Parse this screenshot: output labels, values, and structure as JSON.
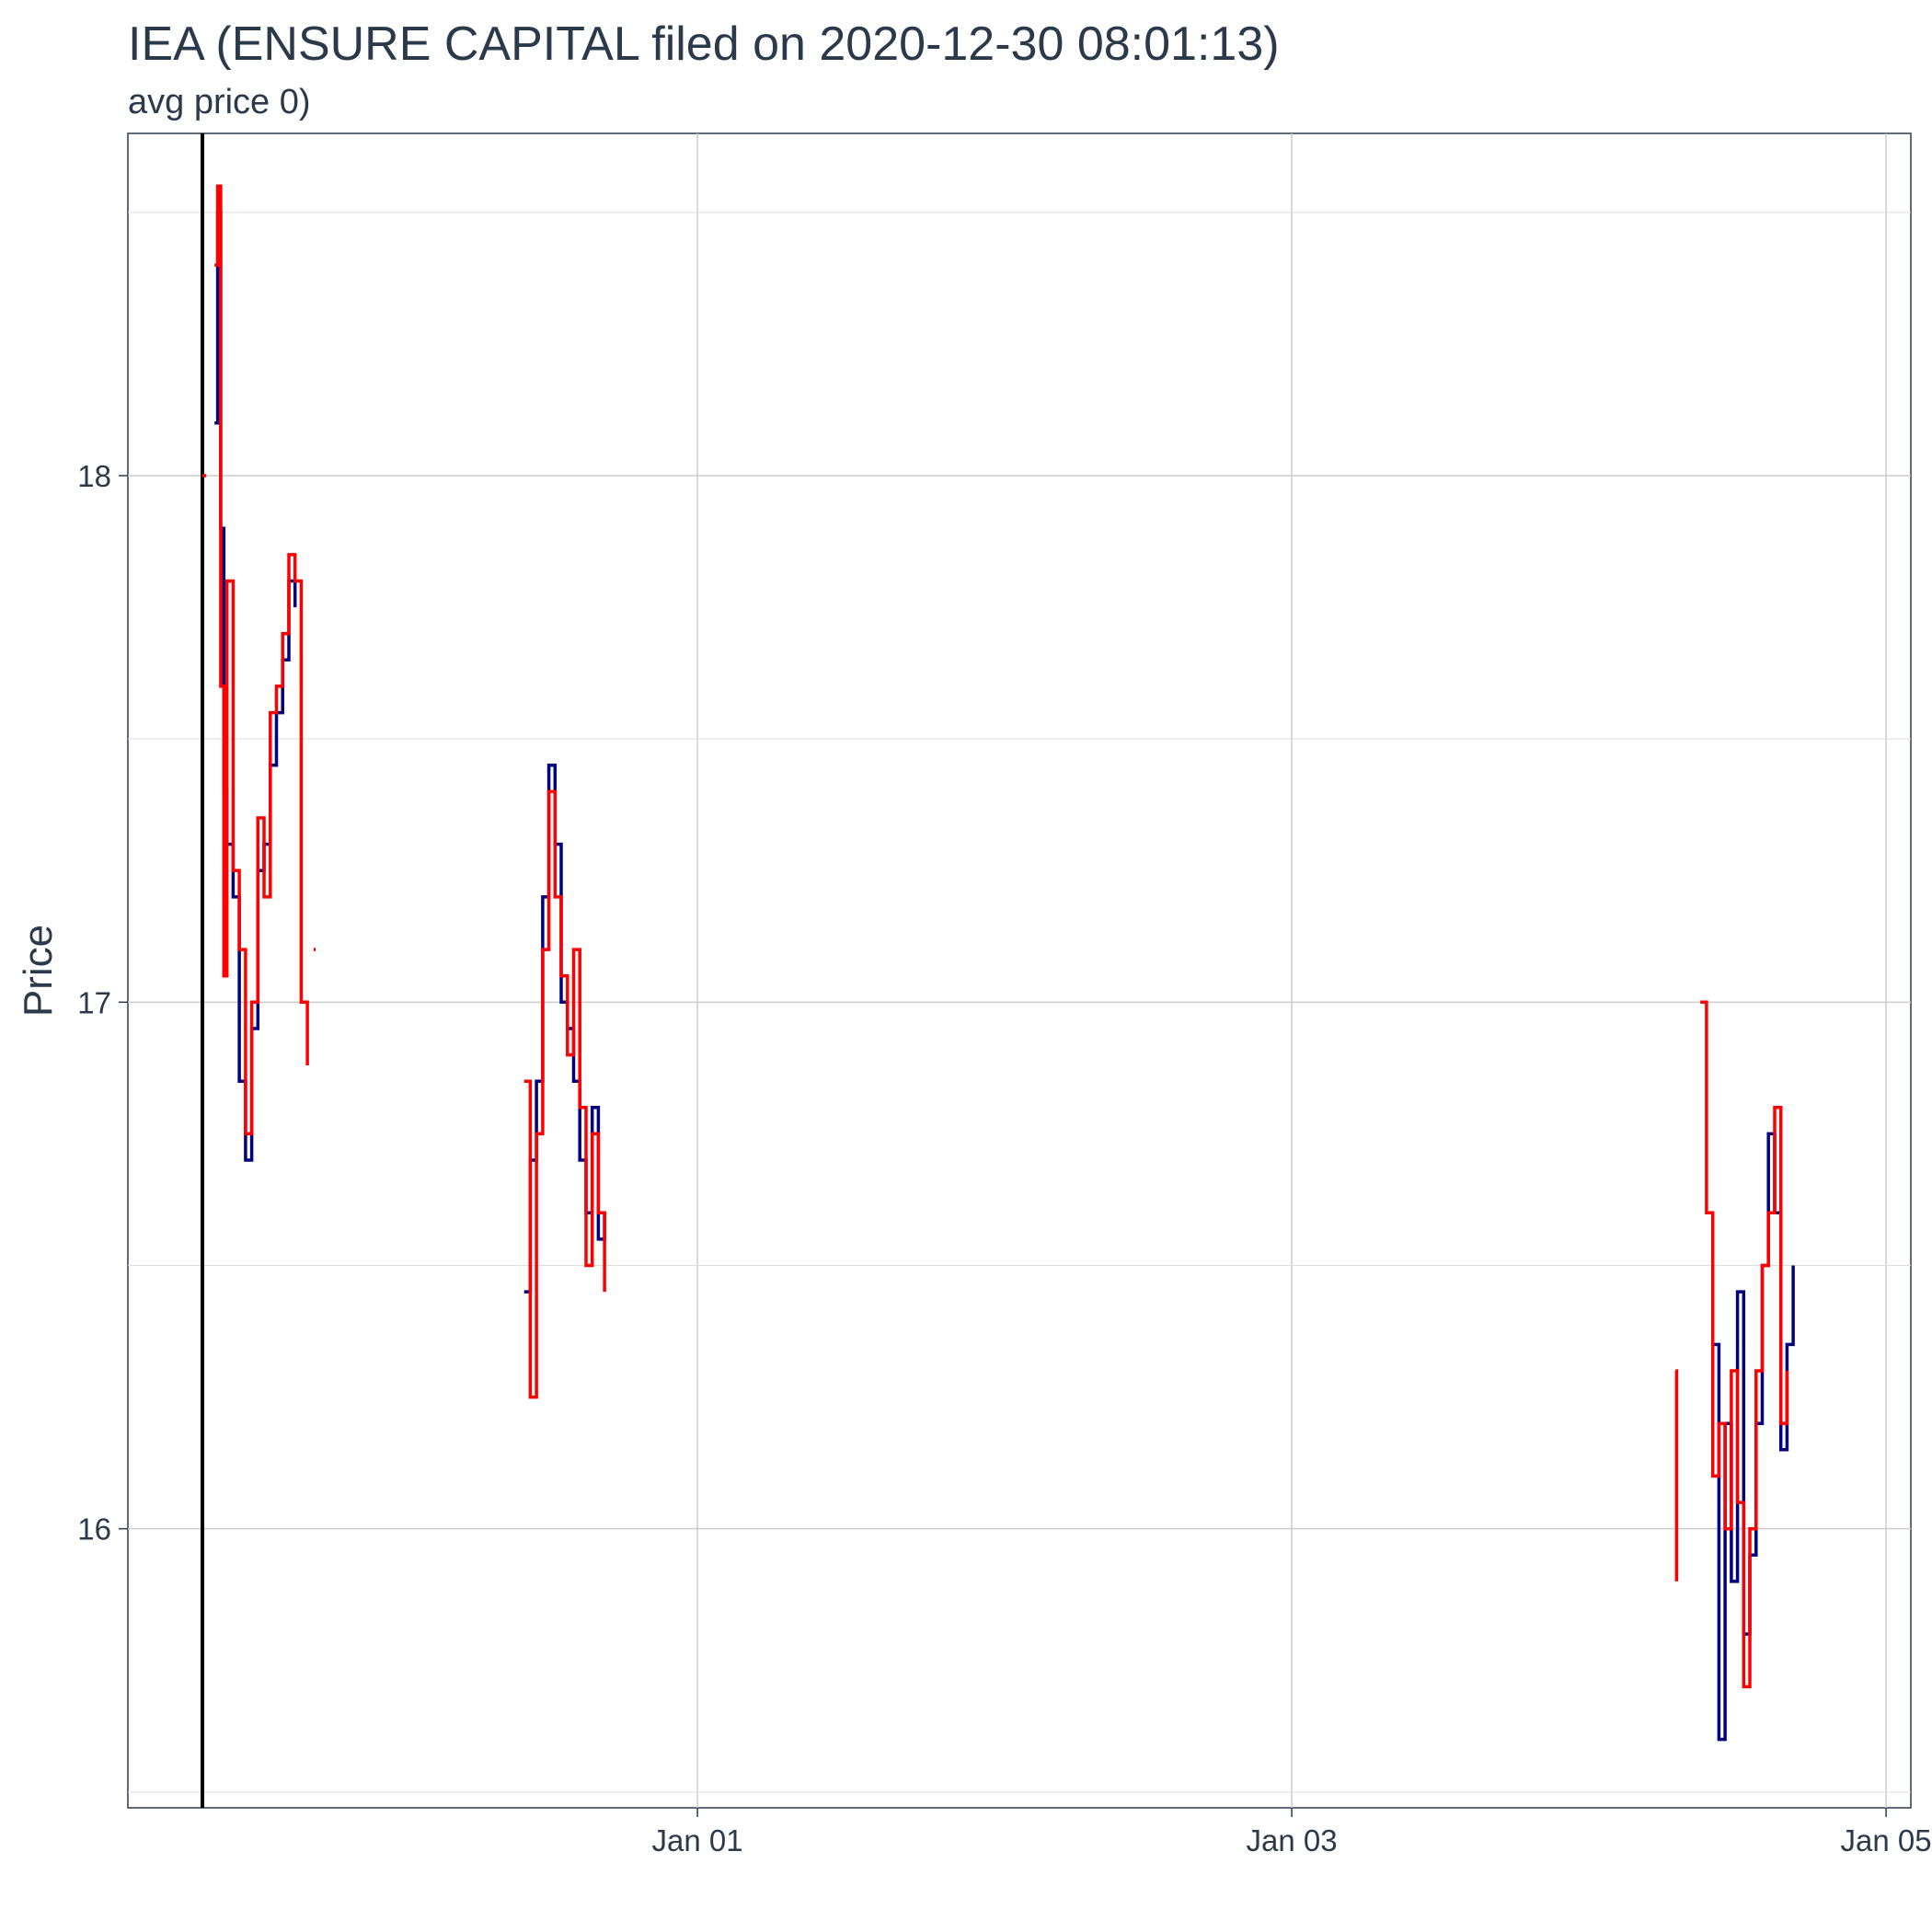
{
  "chart_data": {
    "type": "line",
    "title": "IEA (ENSURE CAPITAL filed on 2020-12-30 08:01:13)",
    "subtitle": "avg price 0)",
    "xlabel": "",
    "ylabel": "Price",
    "x_ticks": [
      {
        "label": "Jan 01",
        "value": "2021-01-01"
      },
      {
        "label": "Jan 03",
        "value": "2021-01-03"
      },
      {
        "label": "Jan 05",
        "value": "2021-01-05"
      }
    ],
    "y_ticks": [
      16,
      17,
      18
    ],
    "xlim": [
      "2020-12-30 02:00",
      "2021-01-05 02:00"
    ],
    "ylim": [
      15.47,
      18.65
    ],
    "grid": true,
    "legend": "none",
    "filing_marker": {
      "x": "2020-12-30 08:01:13",
      "color": "#000000"
    },
    "series": [
      {
        "color": "#000080",
        "segments": [
          {
            "x": [
              "2020-12-30 09:00",
              "2020-12-30 09:15",
              "2020-12-30 09:30",
              "2020-12-30 09:45",
              "2020-12-30 10:00",
              "2020-12-30 10:30",
              "2020-12-30 11:00",
              "2020-12-30 11:30",
              "2020-12-30 12:00",
              "2020-12-30 12:30",
              "2020-12-30 13:00",
              "2020-12-30 13:30",
              "2020-12-30 14:00",
              "2020-12-30 14:30",
              "2020-12-30 15:00",
              "2020-12-30 15:30"
            ],
            "y": [
              18.1,
              18.5,
              17.9,
              17.4,
              17.3,
              17.2,
              16.85,
              16.7,
              16.95,
              17.25,
              17.3,
              17.45,
              17.55,
              17.65,
              17.8,
              17.75
            ]
          },
          {
            "x": [
              "2020-12-31 10:00",
              "2020-12-31 10:30",
              "2020-12-31 11:00",
              "2020-12-31 11:30",
              "2020-12-31 12:00",
              "2020-12-31 12:30",
              "2020-12-31 13:00",
              "2020-12-31 13:30",
              "2020-12-31 14:00",
              "2020-12-31 14:30",
              "2020-12-31 15:00",
              "2020-12-31 15:30",
              "2020-12-31 16:00",
              "2020-12-31 16:30"
            ],
            "y": [
              16.45,
              16.7,
              16.85,
              17.2,
              17.45,
              17.3,
              17.0,
              16.95,
              16.85,
              16.7,
              16.6,
              16.8,
              16.55,
              16.6
            ]
          },
          {
            "x": [
              "2021-01-04 10:00",
              "2021-01-04 10:30",
              "2021-01-04 11:00",
              "2021-01-04 11:30",
              "2021-01-04 12:00",
              "2021-01-04 12:30",
              "2021-01-04 13:00",
              "2021-01-04 13:30",
              "2021-01-04 14:00",
              "2021-01-04 14:30",
              "2021-01-04 15:00",
              "2021-01-04 15:30",
              "2021-01-04 16:00",
              "2021-01-04 16:30"
            ],
            "y": [
              16.35,
              15.6,
              16.2,
              15.9,
              16.45,
              15.8,
              15.95,
              16.2,
              16.5,
              16.75,
              16.6,
              16.15,
              16.35,
              16.5
            ]
          }
        ]
      },
      {
        "color": "#ff0000",
        "segments": [
          {
            "x": [
              "2020-12-30 08:00",
              "2020-12-30 08:20"
            ],
            "y": [
              18.0,
              18.0
            ]
          },
          {
            "x": [
              "2020-12-30 09:00",
              "2020-12-30 09:15",
              "2020-12-30 09:30",
              "2020-12-30 09:45",
              "2020-12-30 10:00",
              "2020-12-30 10:30",
              "2020-12-30 11:00",
              "2020-12-30 11:30",
              "2020-12-30 12:00",
              "2020-12-30 12:30",
              "2020-12-30 13:00",
              "2020-12-30 13:30",
              "2020-12-30 14:00",
              "2020-12-30 14:30",
              "2020-12-30 15:00",
              "2020-12-30 15:30",
              "2020-12-30 16:00",
              "2020-12-30 16:30"
            ],
            "y": [
              18.4,
              18.55,
              17.6,
              17.05,
              17.8,
              17.25,
              17.1,
              16.75,
              17.0,
              17.35,
              17.2,
              17.55,
              17.6,
              17.7,
              17.85,
              17.8,
              17.0,
              16.88
            ]
          },
          {
            "x": [
              "2020-12-30 17:00",
              "2020-12-30 17:10"
            ],
            "y": [
              17.1,
              17.1
            ]
          },
          {
            "x": [
              "2020-12-31 10:00",
              "2020-12-31 10:30",
              "2020-12-31 11:00",
              "2020-12-31 11:30",
              "2020-12-31 12:00",
              "2020-12-31 12:30",
              "2020-12-31 13:00",
              "2020-12-31 13:30",
              "2020-12-31 14:00",
              "2020-12-31 14:30",
              "2020-12-31 15:00",
              "2020-12-31 15:30",
              "2020-12-31 16:00",
              "2020-12-31 16:30"
            ],
            "y": [
              16.85,
              16.25,
              16.75,
              17.1,
              17.4,
              17.2,
              17.05,
              16.9,
              17.1,
              16.8,
              16.5,
              16.75,
              16.6,
              16.45
            ]
          },
          {
            "x": [
              "2021-01-04 07:00",
              "2021-01-04 07:05"
            ],
            "y": [
              16.3,
              15.9
            ]
          },
          {
            "x": [
              "2021-01-04 09:00",
              "2021-01-04 09:30",
              "2021-01-04 10:00",
              "2021-01-04 10:30",
              "2021-01-04 11:00",
              "2021-01-04 11:30",
              "2021-01-04 12:00",
              "2021-01-04 12:30",
              "2021-01-04 13:00",
              "2021-01-04 13:30",
              "2021-01-04 14:00",
              "2021-01-04 14:30",
              "2021-01-04 15:00",
              "2021-01-04 15:30",
              "2021-01-04 16:00"
            ],
            "y": [
              17.0,
              16.6,
              16.1,
              16.2,
              16.0,
              16.3,
              16.05,
              15.7,
              16.0,
              16.3,
              16.5,
              16.6,
              16.8,
              16.2,
              16.3
            ]
          }
        ]
      }
    ]
  }
}
